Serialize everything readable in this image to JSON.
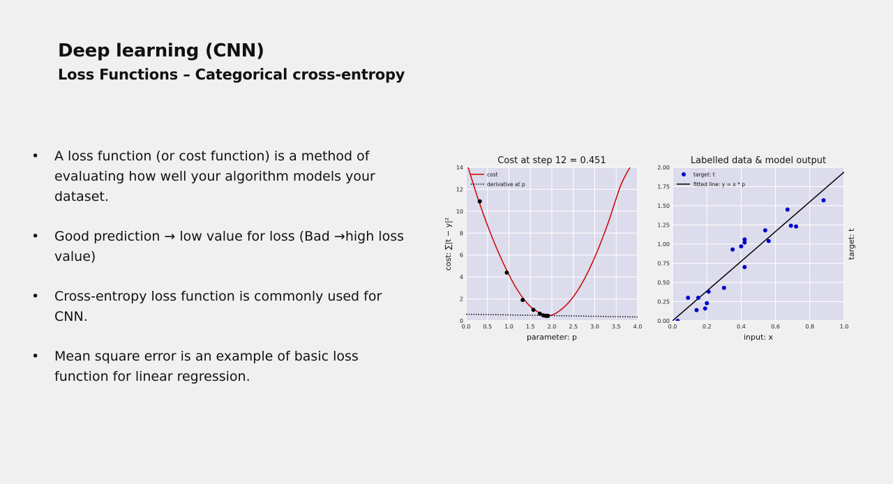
{
  "slide": {
    "title": "Deep learning (CNN)",
    "subtitle": "Loss Functions – Categorical cross-entropy",
    "bullet_symbol": "•",
    "bullets": [
      "A loss function (or cost function) is a method of evaluating how well your algorithm models your dataset.",
      "Good prediction → low value for loss (Bad →high loss value)",
      "Cross-entropy loss function is commonly used for CNN.",
      "Mean square error is an example of basic loss function for linear regression."
    ]
  },
  "colors": {
    "plot_bg": "#dcdcec",
    "grid": "#ffffff",
    "cost_curve": "#cc0000",
    "points": "#000000",
    "scatter": "#0000cc",
    "fit_line": "#000000"
  },
  "chart_data": [
    {
      "type": "line",
      "title": "Cost at step 12 = 0.451",
      "xlabel": "parameter: p",
      "ylabel": "cost: ∑|t − y|²",
      "xlim": [
        0,
        4
      ],
      "ylim": [
        0,
        14
      ],
      "xticks": [
        0,
        0.5,
        1.0,
        1.5,
        2.0,
        2.5,
        3.0,
        3.5,
        4.0
      ],
      "xtick_labels": [
        "0.0",
        "0.5",
        "1.0",
        "1.5",
        "2.0",
        "2.5",
        "3.0",
        "3.5",
        "4.0"
      ],
      "yticks": [
        0,
        2,
        4,
        6,
        8,
        10,
        12,
        14
      ],
      "ytick_labels": [
        "0",
        "2",
        "4",
        "6",
        "8",
        "10",
        "12",
        "14"
      ],
      "grid": true,
      "legend_position": "top-left",
      "series": [
        {
          "name": "cost",
          "style": "solid",
          "x": [
            0.05,
            0.3,
            0.6,
            0.9,
            1.2,
            1.5,
            1.8,
            1.9,
            2.1,
            2.4,
            2.7,
            3.0,
            3.3,
            3.6,
            3.82
          ],
          "y": [
            14.0,
            10.9,
            7.7,
            5.0,
            2.8,
            1.3,
            0.55,
            0.45,
            0.7,
            1.7,
            3.4,
            5.8,
            8.8,
            12.3,
            14.0
          ]
        },
        {
          "name": "derivative at p",
          "style": "dotted",
          "x": [
            0,
            4
          ],
          "y": [
            0.6,
            0.35
          ]
        }
      ],
      "points": {
        "x": [
          0.32,
          0.95,
          1.32,
          1.57,
          1.72,
          1.8,
          1.85,
          1.88,
          1.91
        ],
        "y": [
          10.9,
          4.4,
          1.9,
          1.0,
          0.65,
          0.5,
          0.46,
          0.45,
          0.45
        ]
      }
    },
    {
      "type": "scatter",
      "title": "Labelled data & model output",
      "xlabel": "input: x",
      "ylabel": "target: t",
      "xlim": [
        0,
        1
      ],
      "ylim": [
        0,
        2
      ],
      "xticks": [
        0,
        0.2,
        0.4,
        0.6,
        0.8,
        1.0
      ],
      "xtick_labels": [
        "0.0",
        "0.2",
        "0.4",
        "0.6",
        "0.8",
        "1.0"
      ],
      "yticks": [
        0,
        0.25,
        0.5,
        0.75,
        1.0,
        1.25,
        1.5,
        1.75,
        2.0
      ],
      "ytick_labels": [
        "0.00",
        "0.25",
        "0.50",
        "0.75",
        "1.00",
        "1.25",
        "1.50",
        "1.75",
        "2.00"
      ],
      "grid": true,
      "legend_position": "top-left",
      "series": [
        {
          "name": "target: t",
          "x": [
            0.03,
            0.09,
            0.14,
            0.15,
            0.19,
            0.2,
            0.21,
            0.3,
            0.35,
            0.4,
            0.42,
            0.42,
            0.42,
            0.54,
            0.56,
            0.67,
            0.69,
            0.72,
            0.88
          ],
          "y": [
            0.0,
            0.3,
            0.14,
            0.3,
            0.16,
            0.23,
            0.38,
            0.43,
            0.93,
            0.97,
            0.7,
            1.02,
            1.06,
            1.18,
            1.04,
            1.45,
            1.24,
            1.23,
            1.57
          ]
        },
        {
          "name": "fitted line: y = x * p",
          "x": [
            0,
            1
          ],
          "y": [
            0,
            1.94
          ]
        }
      ]
    }
  ]
}
